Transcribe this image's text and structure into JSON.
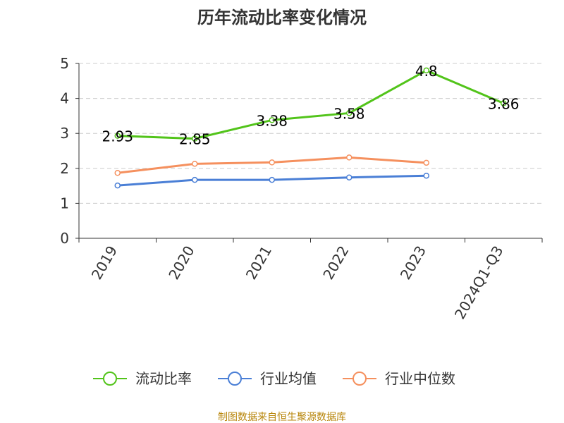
{
  "chart_data": {
    "type": "line",
    "title": "历年流动比率变化情况",
    "categories": [
      "2019",
      "2020",
      "2021",
      "2022",
      "2023",
      "2024Q1-Q3"
    ],
    "ylim": [
      0,
      5
    ],
    "yticks": [
      "0",
      "1",
      "2",
      "3",
      "4",
      "5"
    ],
    "grid": true,
    "legend_position": "bottom",
    "series": [
      {
        "name": "流动比率",
        "color": "#52c41a",
        "values": [
          2.93,
          2.85,
          3.38,
          3.58,
          4.8,
          3.86
        ],
        "labels": [
          "2.93",
          "2.85",
          "3.38",
          "3.58",
          "4.8",
          "3.86"
        ]
      },
      {
        "name": "行业均值",
        "color": "#4a7fd6",
        "values": [
          1.51,
          1.67,
          1.67,
          1.74,
          1.79,
          null
        ]
      },
      {
        "name": "行业中位数",
        "color": "#f5905e",
        "values": [
          1.87,
          2.13,
          2.17,
          2.31,
          2.16,
          null
        ]
      }
    ],
    "source_note": "制图数据来自恒生聚源数据库"
  }
}
